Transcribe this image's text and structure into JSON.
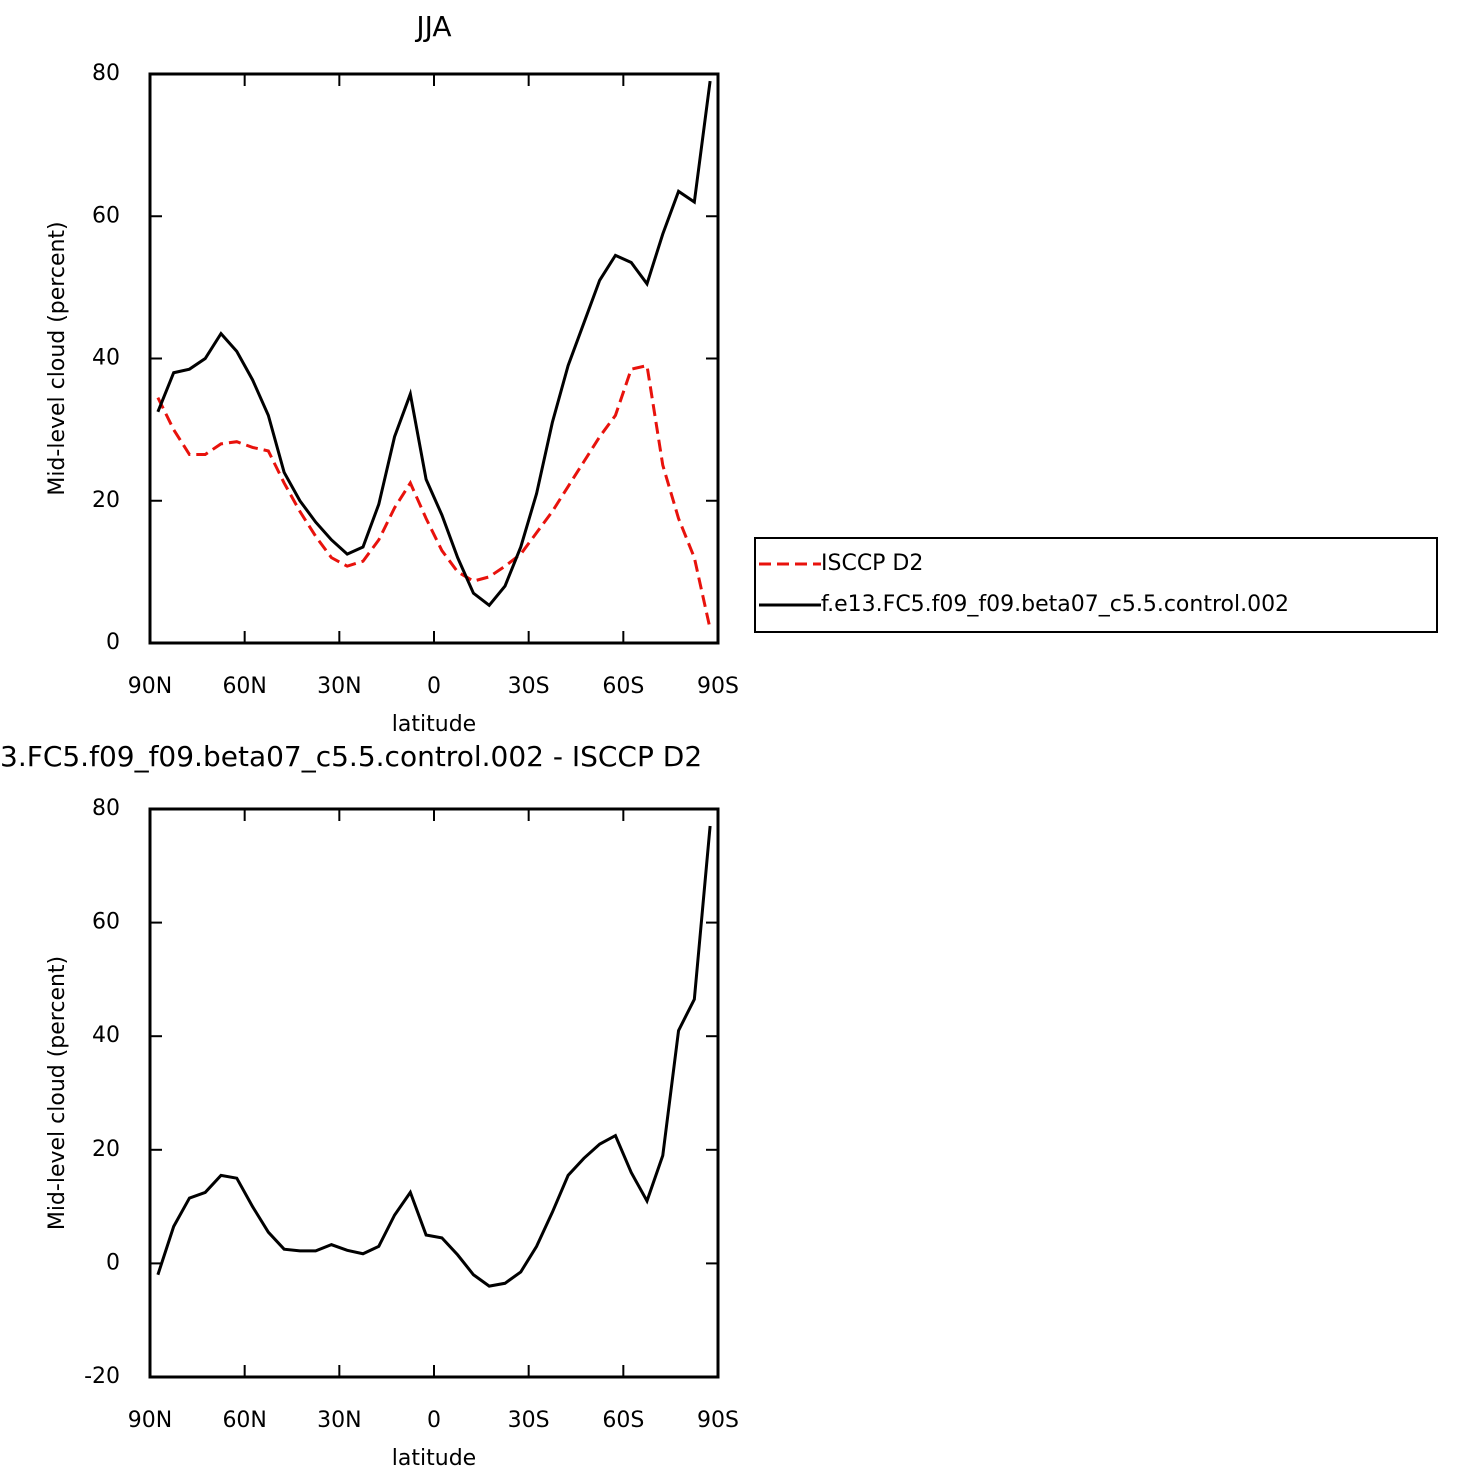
{
  "chart_data": [
    {
      "type": "line",
      "title": "JJA",
      "xlabel": "latitude",
      "ylabel": "Mid-level cloud (percent)",
      "x": [
        87.5,
        82.5,
        77.5,
        72.5,
        67.5,
        62.5,
        57.5,
        52.5,
        47.5,
        42.5,
        37.5,
        32.5,
        27.5,
        22.5,
        17.5,
        12.5,
        7.5,
        2.5,
        -2.5,
        -7.5,
        -12.5,
        -17.5,
        -22.5,
        -27.5,
        -32.5,
        -37.5,
        -42.5,
        -47.5,
        -52.5,
        -57.5,
        -62.5,
        -67.5,
        -72.5,
        -77.5,
        -82.5,
        -87.5
      ],
      "series": [
        {
          "name": "ISCCP D2",
          "color": "#e8120c",
          "dash": true,
          "values": [
            34.5,
            30,
            26.5,
            26.5,
            28,
            28.3,
            27.5,
            27,
            22.5,
            18.5,
            15,
            12,
            10.8,
            11.5,
            14.5,
            19,
            22.5,
            17.5,
            13,
            10,
            8.7,
            9.3,
            10.8,
            12.5,
            15.5,
            18.5,
            22,
            25.5,
            29,
            32,
            38.5,
            39,
            25,
            17.5,
            12,
            2
          ]
        },
        {
          "name": "f.e13.FC5.f09_f09.beta07_c5.5.control.002",
          "color": "#000000",
          "dash": false,
          "values": [
            32.5,
            38,
            38.5,
            40,
            43.5,
            41,
            37,
            32,
            24,
            20,
            17,
            14.5,
            12.5,
            13.5,
            19.5,
            29,
            35,
            23,
            18,
            12,
            7,
            5.3,
            8,
            13.5,
            21,
            31,
            39,
            45,
            51,
            54.5,
            53.5,
            50.5,
            57.5,
            63.5,
            62,
            79
          ]
        }
      ],
      "xlim": [
        90,
        -90
      ],
      "xticks": [
        {
          "value": 90,
          "label": "90N"
        },
        {
          "value": 60,
          "label": "60N"
        },
        {
          "value": 30,
          "label": "30N"
        },
        0,
        {
          "value": -30,
          "label": "30S"
        },
        {
          "value": -60,
          "label": "60S"
        },
        {
          "value": -90,
          "label": "90S"
        }
      ],
      "ylim": [
        0,
        80
      ],
      "yticks": [
        0,
        20,
        40,
        60,
        80
      ],
      "legend": "right"
    },
    {
      "type": "line",
      "title": "3.FC5.f09_f09.beta07_c5.5.control.002 - ISCCP D2",
      "xlabel": "latitude",
      "ylabel": "Mid-level cloud (percent)",
      "x": [
        87.5,
        82.5,
        77.5,
        72.5,
        67.5,
        62.5,
        57.5,
        52.5,
        47.5,
        42.5,
        37.5,
        32.5,
        27.5,
        22.5,
        17.5,
        12.5,
        7.5,
        2.5,
        -2.5,
        -7.5,
        -12.5,
        -17.5,
        -22.5,
        -27.5,
        -32.5,
        -37.5,
        -42.5,
        -47.5,
        -52.5,
        -57.5,
        -62.5,
        -67.5,
        -72.5,
        -77.5,
        -82.5,
        -87.5
      ],
      "series": [
        {
          "color": "#000000",
          "dash": false,
          "values": [
            -2,
            6.5,
            11.5,
            12.5,
            15.5,
            15,
            10,
            5.5,
            2.5,
            2.2,
            2.2,
            3.3,
            2.3,
            1.7,
            3,
            8.5,
            12.5,
            5,
            4.5,
            1.5,
            -2,
            -4,
            -3.5,
            -1.5,
            3,
            9,
            15.5,
            18.5,
            21,
            22.5,
            16,
            11,
            19,
            41,
            46.5,
            77
          ]
        }
      ],
      "xlim": [
        90,
        -90
      ],
      "xticks": [
        {
          "value": 90,
          "label": "90N"
        },
        {
          "value": 60,
          "label": "60N"
        },
        {
          "value": 30,
          "label": "30N"
        },
        0,
        {
          "value": -30,
          "label": "30S"
        },
        {
          "value": -60,
          "label": "60S"
        },
        {
          "value": -90,
          "label": "90S"
        }
      ],
      "ylim": [
        -20,
        80
      ],
      "yticks": [
        -20,
        0,
        20,
        40,
        60,
        80
      ]
    }
  ]
}
